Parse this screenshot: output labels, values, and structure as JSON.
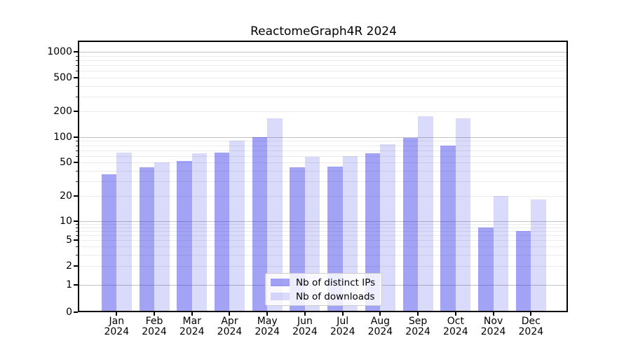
{
  "chart_data": {
    "type": "bar",
    "title": "ReactomeGraph4R 2024",
    "categories": [
      "Jan 2024",
      "Feb 2024",
      "Mar 2024",
      "Apr 2024",
      "May 2024",
      "Jun 2024",
      "Jul 2024",
      "Aug 2024",
      "Sep 2024",
      "Oct 2024",
      "Nov 2024",
      "Dec 2024"
    ],
    "series": [
      {
        "name": "Nb of distinct IPs",
        "color": "rgba(25,25,230,0.40)",
        "values": [
          36,
          44,
          52,
          66,
          100,
          44,
          45,
          64,
          98,
          79,
          8,
          7
        ]
      },
      {
        "name": "Nb of downloads",
        "color": "rgba(25,25,230,0.16)",
        "values": [
          66,
          50,
          64,
          91,
          168,
          58,
          60,
          82,
          175,
          167,
          20,
          18
        ]
      }
    ],
    "yscale": "symlog",
    "yticks": [
      0,
      1,
      2,
      5,
      10,
      20,
      50,
      100,
      200,
      500,
      1000
    ],
    "ylim": [
      0,
      1300
    ],
    "xlabel": "",
    "ylabel": "",
    "grid": "horizontal major and log-minor gridlines",
    "legend_position": "lower center"
  }
}
